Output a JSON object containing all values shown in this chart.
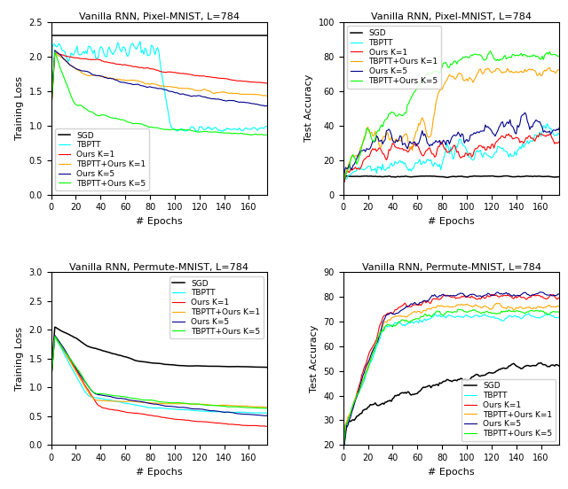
{
  "titles": [
    "Vanilla RNN, Pixel-MNIST, L=784",
    "Vanilla RNN, Pixel-MNIST, L=784",
    "Vanilla RNN, Permute-MNIST, L=784",
    "Vanilla RNN, Permute-MNIST, L=784"
  ],
  "ylabels": [
    "Training Loss",
    "Test Accuracy",
    "Training Loss",
    "Test Accuracy"
  ],
  "xlabel": "# Epochs",
  "legend_labels": [
    "SGD",
    "TBPTT",
    "Ours K=1",
    "TBPTT+Ours K=1",
    "Ours K=5",
    "TBPTT+Ours K=5"
  ],
  "colors": [
    "black",
    "cyan",
    "red",
    "orange",
    "darkblue",
    "lime"
  ],
  "n_epochs": 180,
  "ylims": [
    [
      0.0,
      2.5
    ],
    [
      0.0,
      100.0
    ],
    [
      0.0,
      3.0
    ],
    [
      20.0,
      90.0
    ]
  ],
  "yticks_top_left": [
    0.0,
    0.5,
    1.0,
    1.5,
    2.0,
    2.5
  ],
  "yticks_top_right": [
    0.0,
    20.0,
    40.0,
    60.0,
    80.0,
    100.0
  ],
  "yticks_bot_left": [
    0.0,
    0.5,
    1.0,
    1.5,
    2.0,
    2.5,
    3.0
  ],
  "yticks_bot_right": [
    20.0,
    30.0,
    40.0,
    50.0,
    60.0,
    70.0,
    80.0,
    90.0
  ],
  "xticks": [
    0,
    20,
    40,
    60,
    80,
    100,
    120,
    140,
    160
  ]
}
